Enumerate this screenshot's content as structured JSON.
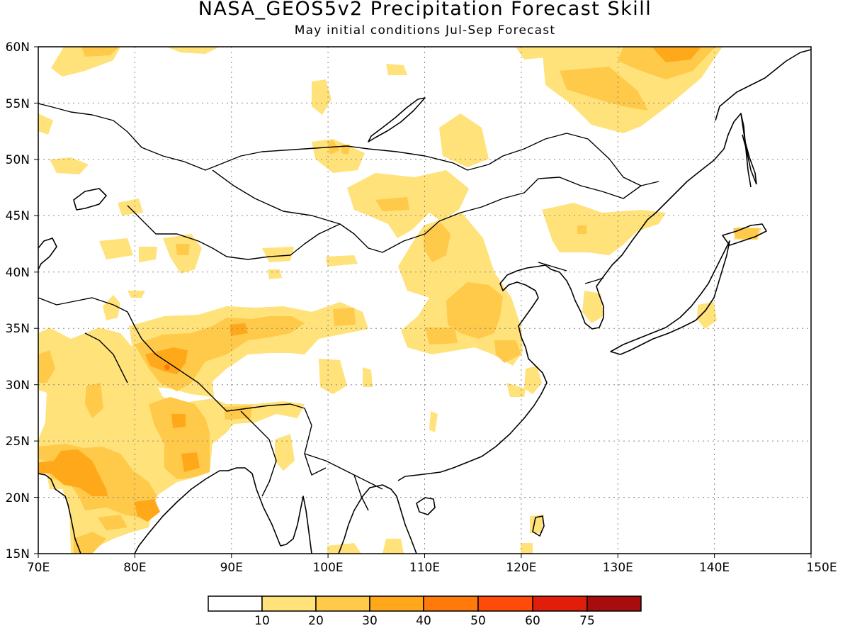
{
  "title": "NASA_GEOS5v2 Precipitation Forecast Skill",
  "subtitle": "May initial conditions  Jul-Sep Forecast",
  "map": {
    "projection": "lat-lon",
    "lon_range": [
      70,
      150
    ],
    "lat_range": [
      15,
      60
    ],
    "lon_ticks": [
      "70E",
      "80E",
      "90E",
      "100E",
      "110E",
      "120E",
      "130E",
      "140E",
      "150E"
    ],
    "lat_ticks": [
      "15N",
      "20N",
      "25N",
      "30N",
      "35N",
      "40N",
      "45N",
      "50N",
      "55N",
      "60N"
    ],
    "gridlines": "dotted",
    "coastlines": "black"
  },
  "colorbar": {
    "labels": [
      "10",
      "20",
      "30",
      "40",
      "50",
      "60",
      "75"
    ],
    "colors": [
      "#ffffff",
      "#ffe27a",
      "#ffc94a",
      "#ffa81a",
      "#ff7a0a",
      "#ff4a0a",
      "#e01e0a",
      "#a80d0d"
    ]
  }
}
